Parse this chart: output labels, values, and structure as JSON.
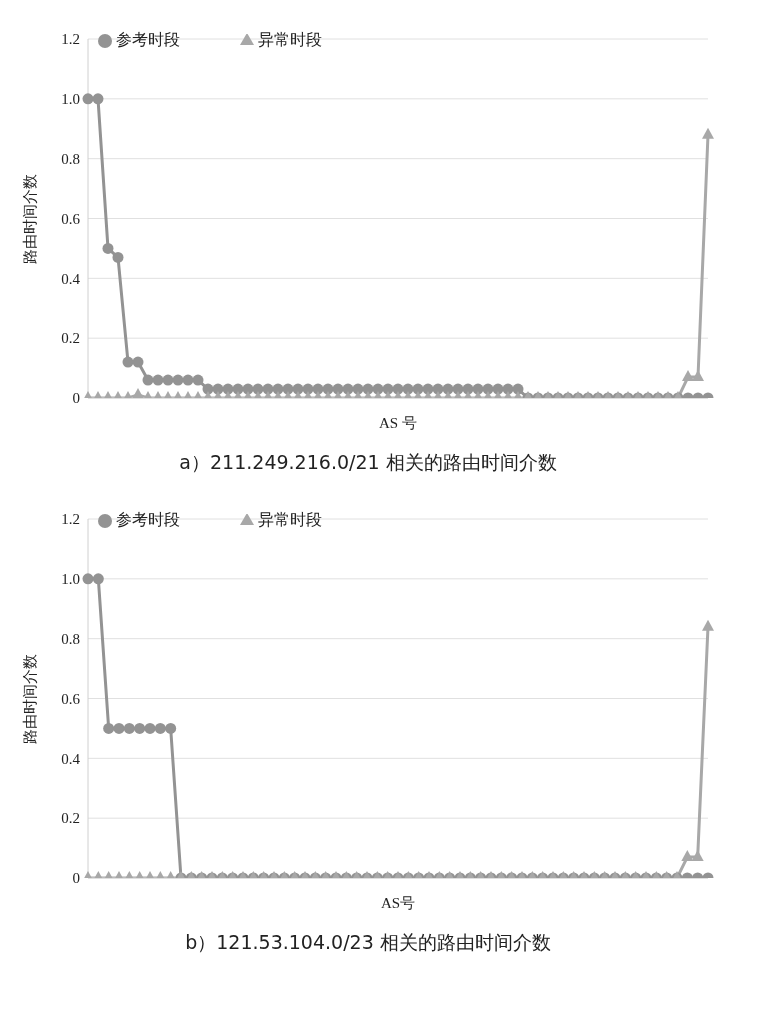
{
  "chart_data": [
    {
      "type": "line",
      "title": "a）211.249.216.0/21 相关的路由时间介数",
      "xlabel": "AS 号",
      "ylabel": "路由时间介数",
      "categories": [
        null,
        null,
        null,
        null,
        null,
        null,
        null,
        null,
        null,
        null,
        null,
        null,
        null,
        null,
        null,
        null,
        null,
        null,
        null,
        null,
        null,
        null,
        null,
        null,
        null,
        null,
        null,
        null,
        null,
        null,
        null,
        null,
        null,
        null,
        null,
        null,
        null,
        null,
        null,
        null,
        null,
        null,
        null,
        null,
        null,
        null,
        null,
        null,
        null,
        null,
        null,
        null,
        null,
        null,
        null,
        null,
        null,
        null,
        null,
        null,
        null,
        null,
        null
      ],
      "series": [
        {
          "name": "参考时段",
          "color": "#939393",
          "marker": "circle",
          "values": [
            1,
            1,
            0.5,
            0.47,
            0.12,
            0.12,
            0.06,
            0.06,
            0.06,
            0.06,
            0.06,
            0.06,
            0.03,
            0.03,
            0.03,
            0.03,
            0.03,
            0.03,
            0.03,
            0.03,
            0.03,
            0.03,
            0.03,
            0.03,
            0.03,
            0.03,
            0.03,
            0.03,
            0.03,
            0.03,
            0.03,
            0.03,
            0.03,
            0.03,
            0.03,
            0.03,
            0.03,
            0.03,
            0.03,
            0.03,
            0.03,
            0.03,
            0.03,
            0.03,
            0,
            0,
            0,
            0,
            0,
            0,
            0,
            0,
            0,
            0,
            0,
            0,
            0,
            0,
            0,
            0,
            0,
            0,
            0
          ]
        },
        {
          "name": "异常时段",
          "color": "#a8a8a8",
          "marker": "triangle",
          "values": [
            0,
            0,
            0,
            0,
            0,
            0.01,
            0,
            0,
            0,
            0,
            0,
            0,
            0,
            0,
            0,
            0,
            0,
            0,
            0,
            0,
            0,
            0,
            0,
            0,
            0,
            0,
            0,
            0,
            0,
            0,
            0,
            0,
            0,
            0,
            0,
            0,
            0,
            0,
            0,
            0,
            0,
            0,
            0,
            0,
            0,
            0,
            0,
            0,
            0,
            0,
            0,
            0,
            0,
            0,
            0,
            0,
            0,
            0,
            0,
            0,
            0.07,
            0.07,
            0.88
          ]
        }
      ],
      "ylim": [
        0,
        1.2
      ],
      "yticks": [
        0,
        0.2,
        0.4,
        0.6,
        0.8,
        {
          "value": 1,
          "label": "1.0"
        },
        1.2
      ],
      "grid": "y",
      "legend": "top left"
    },
    {
      "type": "line",
      "title": "b）121.53.104.0/23 相关的路由时间介数",
      "xlabel": "AS号",
      "ylabel": "路由时间介数",
      "categories": [
        null,
        null,
        null,
        null,
        null,
        null,
        null,
        null,
        null,
        null,
        null,
        null,
        null,
        null,
        null,
        null,
        null,
        null,
        null,
        null,
        null,
        null,
        null,
        null,
        null,
        null,
        null,
        null,
        null,
        null,
        null,
        null,
        null,
        null,
        null,
        null,
        null,
        null,
        null,
        null,
        null,
        null,
        null,
        null,
        null,
        null,
        null,
        null,
        null,
        null,
        null,
        null,
        null,
        null,
        null,
        null,
        null,
        null,
        null,
        null,
        null
      ],
      "series": [
        {
          "name": "参考时段",
          "color": "#939393",
          "marker": "circle",
          "values": [
            1,
            1,
            0.5,
            0.5,
            0.5,
            0.5,
            0.5,
            0.5,
            0.5,
            0,
            0,
            0,
            0,
            0,
            0,
            0,
            0,
            0,
            0,
            0,
            0,
            0,
            0,
            0,
            0,
            0,
            0,
            0,
            0,
            0,
            0,
            0,
            0,
            0,
            0,
            0,
            0,
            0,
            0,
            0,
            0,
            0,
            0,
            0,
            0,
            0,
            0,
            0,
            0,
            0,
            0,
            0,
            0,
            0,
            0,
            0,
            0,
            0,
            0,
            0,
            0
          ]
        },
        {
          "name": "异常时段",
          "color": "#a8a8a8",
          "marker": "triangle",
          "values": [
            0,
            0,
            0,
            0,
            0,
            0,
            0,
            0,
            0,
            0,
            0,
            0,
            0,
            0,
            0,
            0,
            0,
            0,
            0,
            0,
            0,
            0,
            0,
            0,
            0,
            0,
            0,
            0,
            0,
            0,
            0,
            0,
            0,
            0,
            0,
            0,
            0,
            0,
            0,
            0,
            0,
            0,
            0,
            0,
            0,
            0,
            0,
            0,
            0,
            0,
            0,
            0,
            0,
            0,
            0,
            0,
            0,
            0,
            0.07,
            0.07,
            0.84
          ]
        }
      ],
      "ylim": [
        0,
        1.2
      ],
      "yticks": [
        0,
        0.2,
        0.4,
        0.6,
        0.8,
        {
          "value": 1,
          "label": "1.0"
        },
        1.2
      ],
      "grid": "y",
      "legend": "top left"
    }
  ]
}
